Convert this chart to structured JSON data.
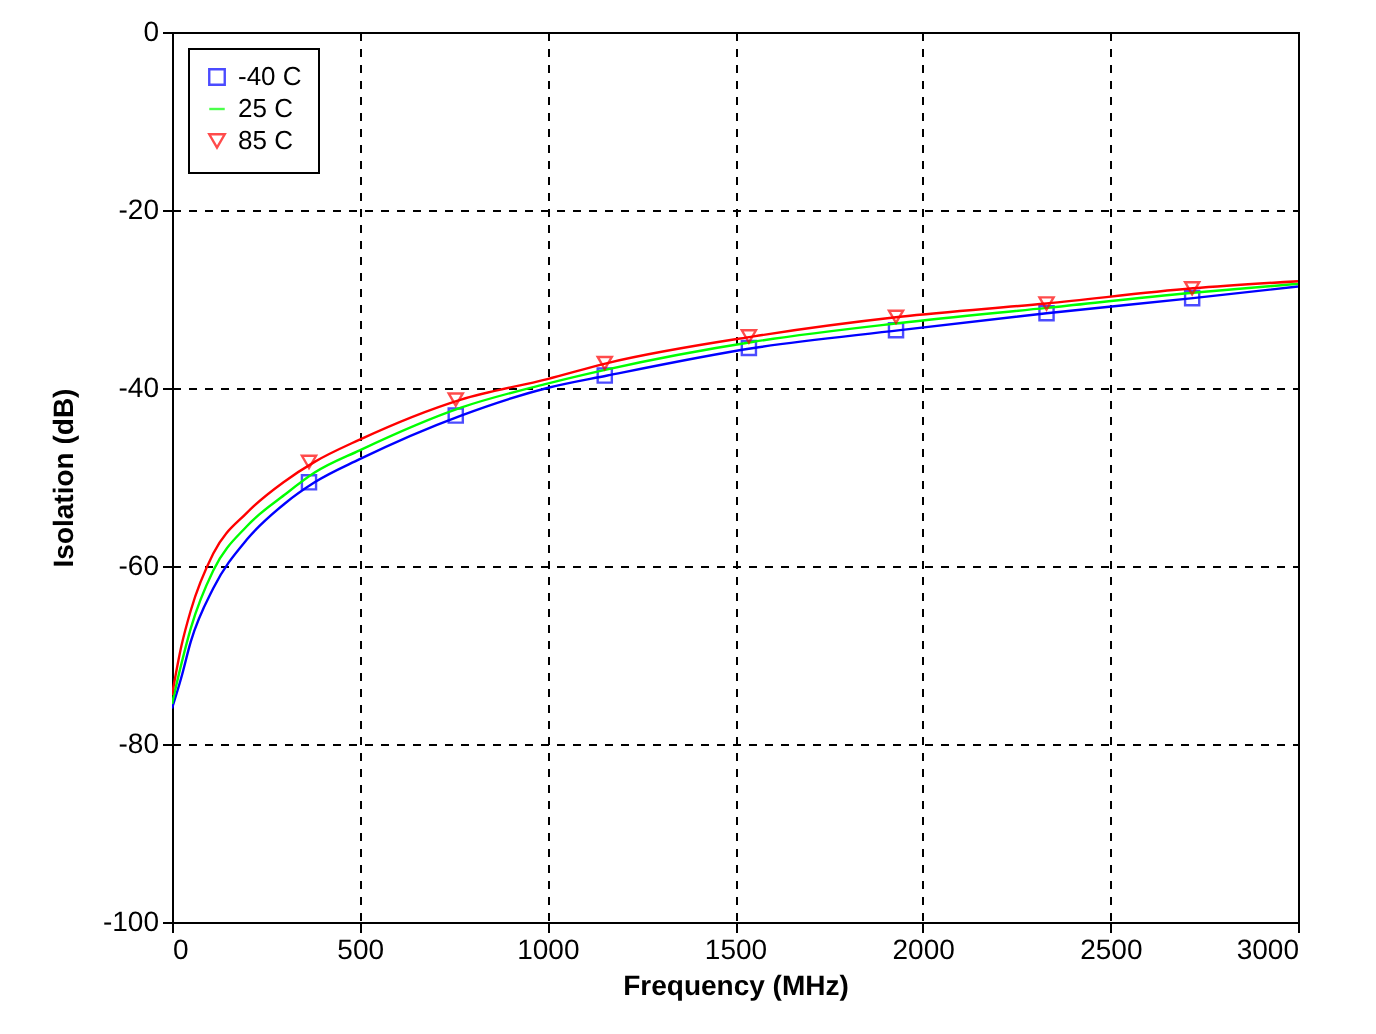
{
  "chart_data": {
    "type": "line",
    "xlabel": "Frequency (MHz)",
    "ylabel": "Isolation (dB)",
    "xlim": [
      0,
      3000
    ],
    "xticks": [
      0,
      500,
      1000,
      1500,
      2000,
      2500,
      3000
    ],
    "ylim": [
      -100,
      0
    ],
    "yticks": [
      -100,
      -80,
      -60,
      -40,
      -20,
      0
    ],
    "grid": true,
    "legend": "top left",
    "series": [
      {
        "type": "line",
        "color": "#0000ff",
        "x": [
          0,
          25,
          50,
          110,
          200,
          300,
          380,
          500,
          770,
          1000,
          1160,
          1550,
          1940,
          2330,
          2720,
          3000
        ],
        "values": [
          -76,
          -72.5,
          -68.5,
          -62.5,
          -57,
          -53,
          -50.6,
          -48,
          -43.1,
          -40,
          -38.6,
          -35.5,
          -33.5,
          -31.6,
          -29.9,
          -28.6
        ]
      },
      {
        "type": "scatter",
        "name": "-40 C",
        "color": "#0000ff",
        "marker": "square",
        "x": [
          365,
          756,
          1153,
          1537,
          1929,
          2330,
          2718
        ],
        "values": [
          -50.6,
          -43.1,
          -38.6,
          -35.5,
          -33.5,
          -31.6,
          -29.9
        ]
      },
      {
        "name": "25 C",
        "color": "#00ff00",
        "x": [
          0,
          25,
          50,
          110,
          200,
          300,
          380,
          500,
          770,
          1000,
          1160,
          1550,
          1940,
          2330,
          2720,
          3000
        ],
        "values": [
          -75.5,
          -71,
          -67,
          -60.5,
          -55.5,
          -52,
          -49.5,
          -47,
          -42.2,
          -39.5,
          -37.9,
          -34.8,
          -32.7,
          -31,
          -29.3,
          -28.3
        ]
      },
      {
        "type": "line",
        "color": "#ff0000",
        "x": [
          0,
          25,
          50,
          110,
          200,
          300,
          380,
          500,
          770,
          1000,
          1160,
          1550,
          1940,
          2330,
          2720,
          3000
        ],
        "values": [
          -74.5,
          -69,
          -65,
          -58.6,
          -54,
          -50.5,
          -48.3,
          -45.8,
          -41.3,
          -39,
          -37.2,
          -34.2,
          -32,
          -30.5,
          -28.8,
          -28
        ]
      },
      {
        "type": "scatter",
        "name": "85 C",
        "color": "#ff0000",
        "marker": "triangle",
        "x": [
          365,
          756,
          1153,
          1537,
          1929,
          2330,
          2718
        ],
        "values": [
          -48.3,
          -41.3,
          -37.2,
          -34.2,
          -32,
          -30.5,
          -28.8
        ]
      }
    ]
  }
}
